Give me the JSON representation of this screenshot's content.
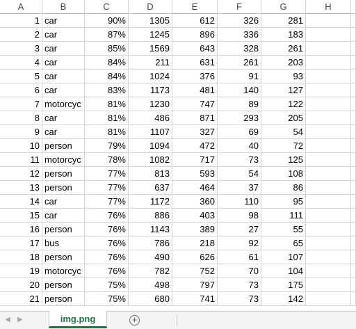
{
  "columns": [
    "A",
    "B",
    "C",
    "D",
    "E",
    "F",
    "G",
    "H"
  ],
  "rows": [
    [
      "1",
      "car",
      "90%",
      "1305",
      "612",
      "326",
      "281"
    ],
    [
      "2",
      "car",
      "87%",
      "1245",
      "896",
      "336",
      "183"
    ],
    [
      "3",
      "car",
      "85%",
      "1569",
      "643",
      "328",
      "261"
    ],
    [
      "4",
      "car",
      "84%",
      "211",
      "631",
      "261",
      "203"
    ],
    [
      "5",
      "car",
      "84%",
      "1024",
      "376",
      "91",
      "93"
    ],
    [
      "6",
      "car",
      "83%",
      "1173",
      "481",
      "140",
      "127"
    ],
    [
      "7",
      "motorcyc",
      "81%",
      "1230",
      "747",
      "89",
      "122"
    ],
    [
      "8",
      "car",
      "81%",
      "486",
      "871",
      "293",
      "205"
    ],
    [
      "9",
      "car",
      "81%",
      "1107",
      "327",
      "69",
      "54"
    ],
    [
      "10",
      "person",
      "79%",
      "1094",
      "472",
      "40",
      "72"
    ],
    [
      "11",
      "motorcyc",
      "78%",
      "1082",
      "717",
      "73",
      "125"
    ],
    [
      "12",
      "person",
      "77%",
      "813",
      "593",
      "54",
      "108"
    ],
    [
      "13",
      "person",
      "77%",
      "637",
      "464",
      "37",
      "86"
    ],
    [
      "14",
      "car",
      "77%",
      "1172",
      "360",
      "110",
      "95"
    ],
    [
      "15",
      "car",
      "76%",
      "886",
      "403",
      "98",
      "111"
    ],
    [
      "16",
      "person",
      "76%",
      "1143",
      "389",
      "27",
      "55"
    ],
    [
      "17",
      "bus",
      "76%",
      "786",
      "218",
      "92",
      "65"
    ],
    [
      "18",
      "person",
      "76%",
      "490",
      "626",
      "61",
      "107"
    ],
    [
      "19",
      "motorcyc",
      "76%",
      "782",
      "752",
      "70",
      "104"
    ],
    [
      "20",
      "person",
      "75%",
      "498",
      "797",
      "73",
      "175"
    ],
    [
      "21",
      "person",
      "75%",
      "680",
      "741",
      "73",
      "142"
    ]
  ],
  "sheet_tabs": {
    "active_tab": "img.png",
    "add_icon": "plus-circle-icon",
    "prev_icon": "chevron-left-icon",
    "next_icon": "chevron-right-icon"
  },
  "colors": {
    "active_tab": "#217346",
    "gridline": "#d4d4d4",
    "tabbar_bg": "#f3f3f3"
  }
}
